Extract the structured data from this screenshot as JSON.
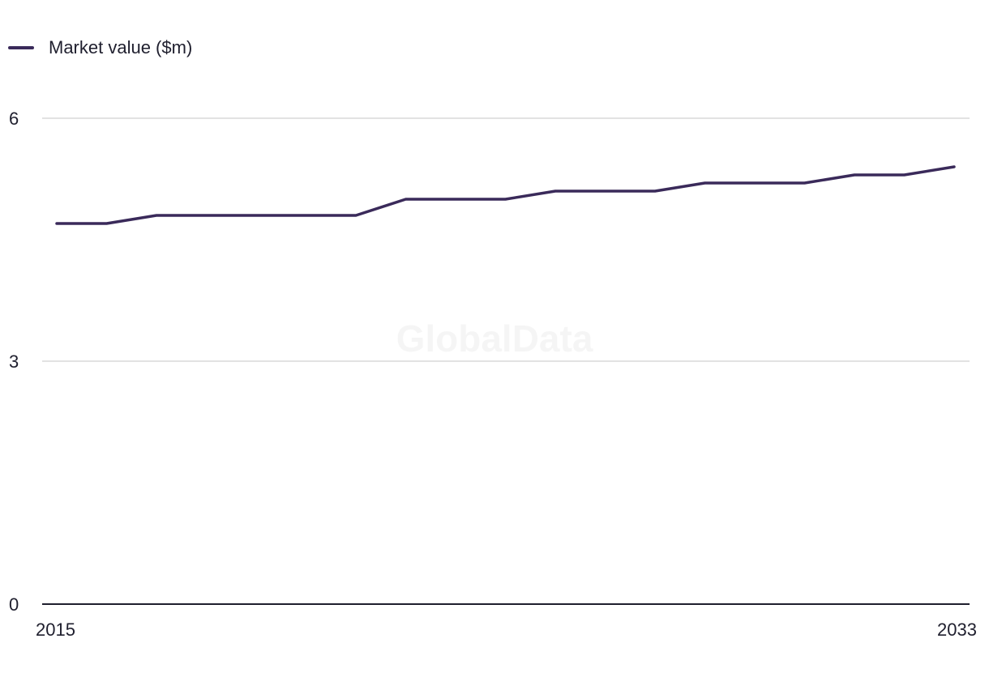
{
  "chart_data": {
    "type": "line",
    "series": [
      {
        "name": "Market value ($m)",
        "color": "#3a2a5a",
        "x": [
          2015,
          2016,
          2017,
          2018,
          2019,
          2020,
          2021,
          2022,
          2023,
          2024,
          2025,
          2026,
          2027,
          2028,
          2029,
          2030,
          2031,
          2032,
          2033
        ],
        "values": [
          4.7,
          4.7,
          4.8,
          4.8,
          4.8,
          4.8,
          4.8,
          5.0,
          5.0,
          5.0,
          5.1,
          5.1,
          5.1,
          5.2,
          5.2,
          5.2,
          5.3,
          5.3,
          5.4
        ]
      }
    ],
    "xlim": [
      2015,
      2033
    ],
    "x_tick_labels": [
      "2015",
      "2033"
    ],
    "ylim": [
      0,
      6
    ],
    "y_ticks": [
      0,
      3,
      6
    ],
    "y_tick_labels": [
      "0",
      "3",
      "6"
    ],
    "grid": true,
    "legend_position": "top-left",
    "watermark": "GlobalData"
  },
  "colors": {
    "line": "#3a2a5a",
    "gridline": "#d9d9d9",
    "axis": "#1f1f2e",
    "text": "#1f1f2e"
  }
}
